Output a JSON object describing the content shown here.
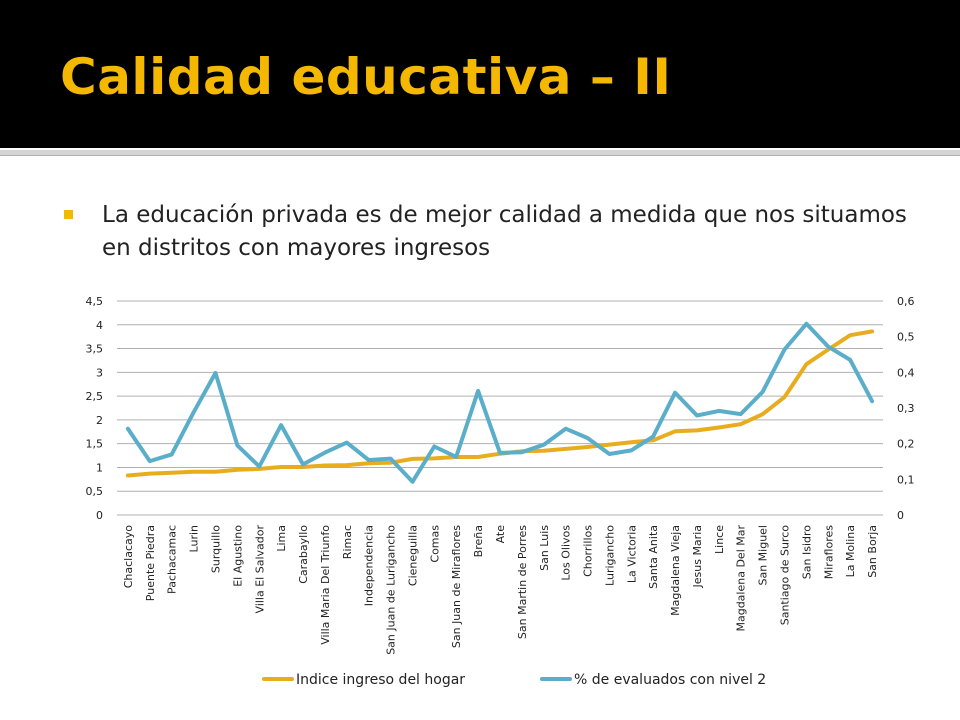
{
  "slide": {
    "title": "Calidad educativa – II",
    "bullet": "La educación privada es de mejor calidad a medida que nos situamos en distritos con mayores ingresos"
  },
  "colors": {
    "header_bg": "#000000",
    "title": "#f5b800",
    "series_income": "#e8ad1f",
    "series_eval": "#5aaec9",
    "grid": "#b0b0b0"
  },
  "chart_data": {
    "type": "line",
    "categories": [
      "Chaclacayo",
      "Puente Piedra",
      "Pachacamac",
      "Lurin",
      "Surquillo",
      "El Agustino",
      "Villa El Salvador",
      "Lima",
      "Carabayllo",
      "Villa Maria Del Triunfo",
      "Rimac",
      "Independencia",
      "San Juan de Lurigancho",
      "Cieneguilla",
      "Comas",
      "San Juan de Miraflores",
      "Breña",
      "Ate",
      "San Martin de Porres",
      "San Luis",
      "Los Olivos",
      "Chorrillos",
      "Lurigancho",
      "La Victoria",
      "Santa Anita",
      "Magdalena Vieja",
      "Jesus Maria",
      "Lince",
      "Magdalena Del Mar",
      "San Miguel",
      "Santiago de Surco",
      "San Isidro",
      "Miraflores",
      "La Molina",
      "San Borja"
    ],
    "series": [
      {
        "name": "Indice ingreso del hogar",
        "axis": "left",
        "values": [
          0.83,
          0.87,
          0.89,
          0.91,
          0.91,
          0.95,
          0.97,
          1.01,
          1.01,
          1.04,
          1.05,
          1.09,
          1.1,
          1.18,
          1.19,
          1.22,
          1.22,
          1.29,
          1.34,
          1.35,
          1.39,
          1.43,
          1.48,
          1.53,
          1.57,
          1.76,
          1.78,
          1.84,
          1.91,
          2.12,
          2.48,
          3.17,
          3.48,
          3.78,
          3.86
        ]
      },
      {
        "name": "% de evaluados con nivel 2",
        "axis": "right",
        "values": [
          0.242,
          0.151,
          0.17,
          0.288,
          0.398,
          0.195,
          0.136,
          0.252,
          0.142,
          0.175,
          0.203,
          0.154,
          0.158,
          0.093,
          0.192,
          0.163,
          0.348,
          0.174,
          0.176,
          0.197,
          0.242,
          0.216,
          0.171,
          0.181,
          0.22,
          0.343,
          0.279,
          0.292,
          0.283,
          0.345,
          0.464,
          0.536,
          0.472,
          0.435,
          0.319
        ]
      }
    ],
    "y_left": {
      "ylim": [
        0,
        4.5
      ],
      "ticks": [
        "0",
        "0,5",
        "1",
        "1,5",
        "2",
        "2,5",
        "3",
        "3,5",
        "4",
        "4,5"
      ]
    },
    "y_right": {
      "ylim": [
        0,
        0.6
      ],
      "ticks": [
        "0",
        "0,1",
        "0,2",
        "0,3",
        "0,4",
        "0,5",
        "0,6"
      ]
    },
    "grid": true,
    "legend_position": "bottom"
  }
}
